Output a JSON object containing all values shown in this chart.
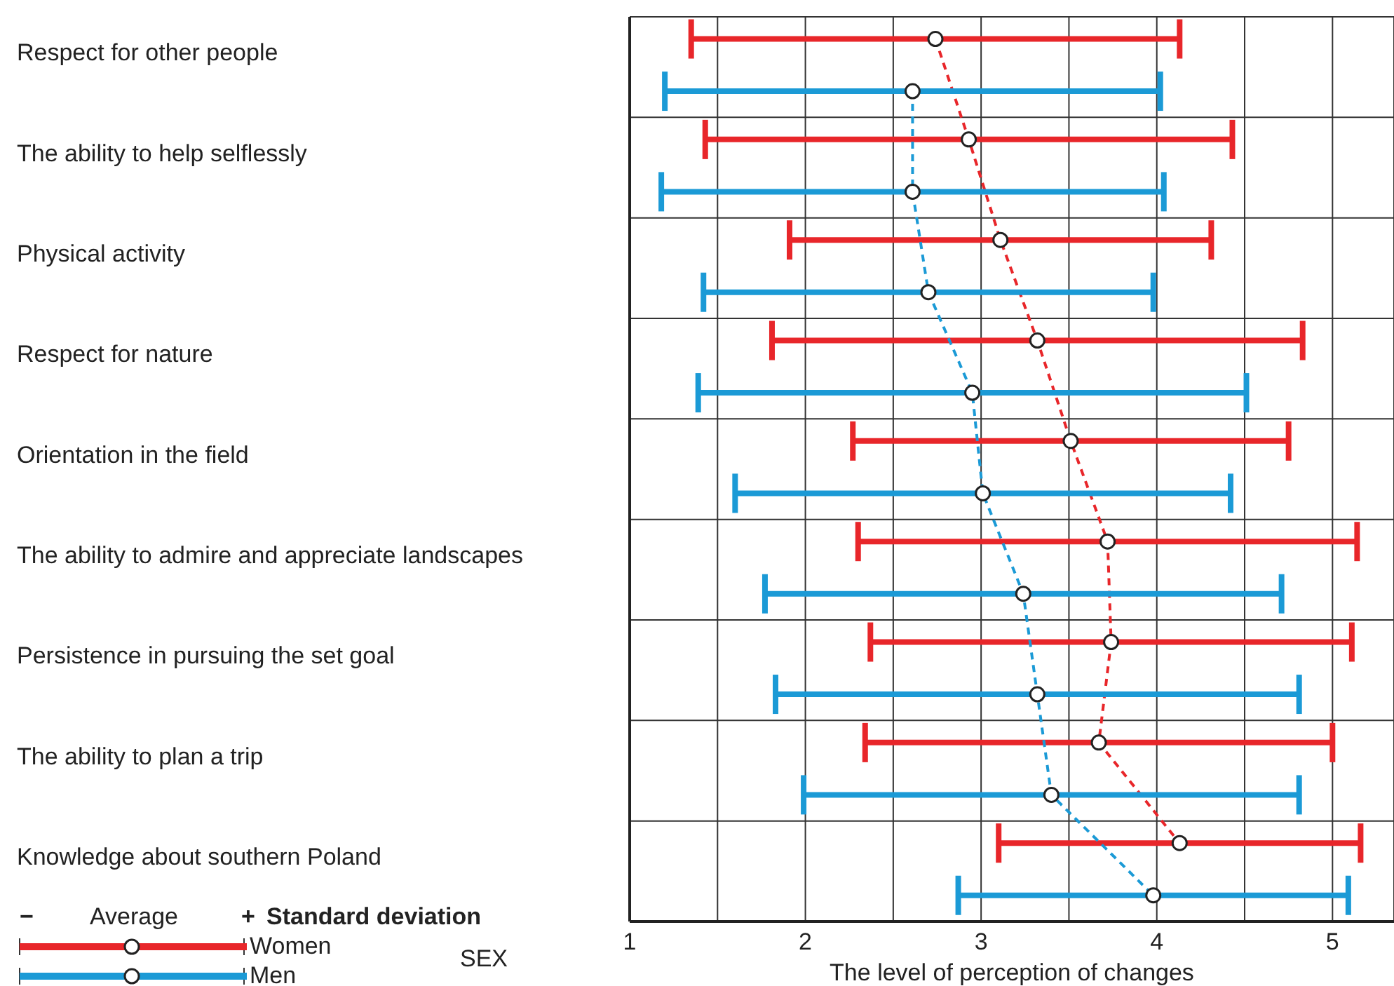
{
  "chart_data": {
    "type": "line",
    "orientation": "horizontal",
    "xlabel": "The level of perception of changes",
    "legend_title": "SEX",
    "categories": [
      "Respect for other people",
      "The ability to help selflessly",
      "Physical activity",
      "Respect for nature",
      "Orientation in the field",
      "The ability to admire and appreciate landscapes",
      "Persistence in pursuing the set goal",
      "The ability to plan a trip",
      "Knowledge about southern Poland"
    ],
    "series": [
      {
        "name": "Women",
        "color": "#e8262a",
        "values": [
          2.74,
          2.93,
          3.11,
          3.32,
          3.51,
          3.72,
          3.74,
          3.67,
          4.13
        ],
        "errors": [
          1.39,
          1.5,
          1.2,
          1.51,
          1.24,
          1.42,
          1.37,
          1.33,
          1.03
        ]
      },
      {
        "name": "Men",
        "color": "#1b9ad6",
        "values": [
          2.61,
          2.61,
          2.7,
          2.95,
          3.01,
          3.24,
          3.32,
          3.4,
          3.98
        ],
        "errors": [
          1.41,
          1.43,
          1.28,
          1.56,
          1.41,
          1.47,
          1.49,
          1.41,
          1.11
        ]
      }
    ],
    "xlim": [
      1,
      5.35
    ],
    "xticks": [
      1,
      {
        "value": 1.5,
        "label": null
      },
      2,
      {
        "value": 2.5,
        "label": null
      },
      3,
      {
        "value": 3.5,
        "label": null
      },
      4,
      {
        "value": 4.5,
        "label": null
      },
      5
    ],
    "annotations": [
      "−",
      "Average",
      "+",
      "Standard deviation"
    ],
    "grid": true,
    "legend": "bottom left",
    "marker": "circle",
    "line_style": "dashed"
  }
}
